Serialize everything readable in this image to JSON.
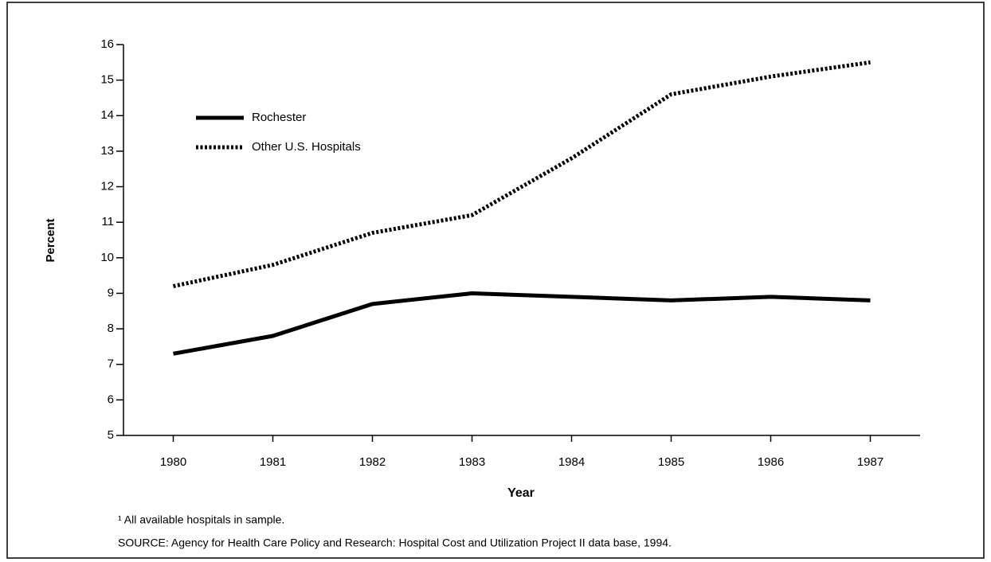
{
  "chart_data": {
    "type": "line",
    "categories": [
      "1980",
      "1981",
      "1982",
      "1983",
      "1984",
      "1985",
      "1986",
      "1987"
    ],
    "series": [
      {
        "name": "Rochester",
        "color": "#000000",
        "style": "solid",
        "values": [
          7.3,
          7.8,
          8.7,
          9.0,
          8.9,
          8.8,
          8.9,
          8.8
        ]
      },
      {
        "name": "Other U.S. Hospitals",
        "color": "#000000",
        "style": "dotted",
        "values": [
          9.2,
          9.8,
          10.7,
          11.2,
          12.8,
          14.6,
          15.1,
          15.5
        ]
      }
    ],
    "ylim": [
      5,
      16
    ],
    "yticks": [
      5,
      6,
      7,
      8,
      9,
      10,
      11,
      12,
      13,
      14,
      15,
      16
    ],
    "y_label": "Percent",
    "x_label": "Year",
    "legend": "upper left",
    "footnote": "¹ All available hospitals in sample.",
    "source": "SOURCE: Agency for Health Care Policy and Research: Hospital Cost and Utilization Project II data base, 1994."
  }
}
